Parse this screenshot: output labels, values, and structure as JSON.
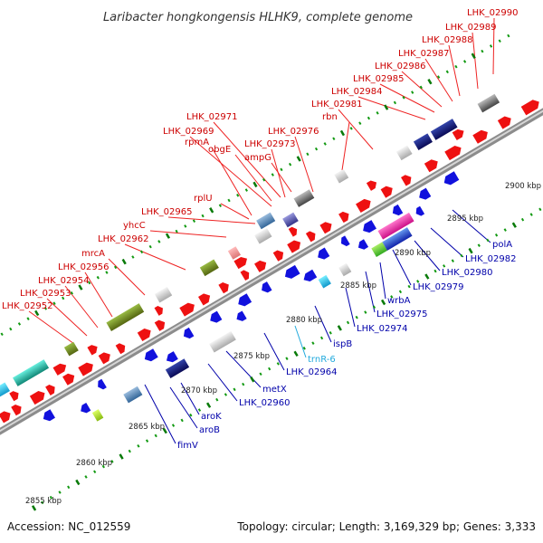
{
  "title": "Laribacter hongkongensis HLHK9, complete genome",
  "footer": {
    "accession": "Accession: NC_012559",
    "summary": "Topology: circular; Length: 3,169,329 bp; Genes: 3,333"
  },
  "colors": {
    "forward": "#ee1111",
    "reverse": "#1111dd",
    "trna": "#22aadd",
    "backbone": "#888888",
    "tick": "#119911"
  },
  "scale_labels": [
    "2855 kbp",
    "2860 kbp",
    "2865 kbp",
    "2870 kbp",
    "2875 kbp",
    "2880 kbp",
    "2885 kbp",
    "2890 kbp",
    "2895 kbp",
    "2900 kbp"
  ],
  "forward_labels": [
    "LHK_02952",
    "LHK_02953",
    "LHK_02954",
    "LHK_02956",
    "mrcA",
    "LHK_02962",
    "yhcC",
    "LHK_02965",
    "rplU",
    "rpmA",
    "LHK_02969",
    "obgE",
    "LHK_02971",
    "ampG",
    "LHK_02973",
    "LHK_02976",
    "rbn",
    "LHK_02981",
    "LHK_02984",
    "LHK_02985",
    "LHK_02986",
    "LHK_02987",
    "LHK_02988",
    "LHK_02989",
    "LHK_02990"
  ],
  "reverse_labels": [
    "fimV",
    "aroB",
    "aroK",
    "LHK_02960",
    "metX",
    "LHK_02964",
    "trnR-6",
    "ispB",
    "LHK_02974",
    "LHK_02975",
    "wrbA",
    "LHK_02979",
    "LHK_02980",
    "LHK_02982",
    "polA"
  ]
}
